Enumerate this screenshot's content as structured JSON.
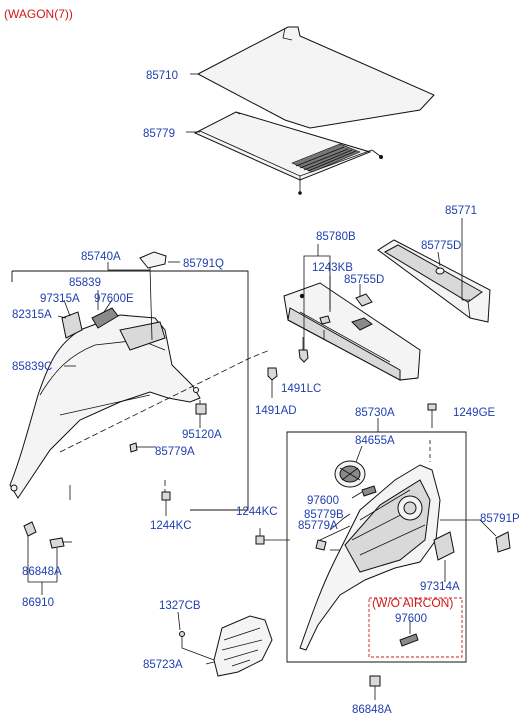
{
  "variant_label": "(WAGON(7))",
  "note_label": "(W/O AIRCON)",
  "labels": [
    {
      "id": "85710",
      "text": "85710"
    },
    {
      "id": "85779-top",
      "text": "85779"
    },
    {
      "id": "85771",
      "text": "85771"
    },
    {
      "id": "85775D",
      "text": "85775D"
    },
    {
      "id": "85780B",
      "text": "85780B"
    },
    {
      "id": "1243KB",
      "text": "1243KB"
    },
    {
      "id": "85755D",
      "text": "85755D"
    },
    {
      "id": "85740A",
      "text": "85740A"
    },
    {
      "id": "85791Q",
      "text": "85791Q"
    },
    {
      "id": "85839",
      "text": "85839"
    },
    {
      "id": "97315A",
      "text": "97315A"
    },
    {
      "id": "97600E",
      "text": "97600E"
    },
    {
      "id": "82315A",
      "text": "82315A"
    },
    {
      "id": "85839C",
      "text": "85839C"
    },
    {
      "id": "1491LC",
      "text": "1491LC"
    },
    {
      "id": "1491AD",
      "text": "1491AD"
    },
    {
      "id": "95120A",
      "text": "95120A"
    },
    {
      "id": "85779A-left",
      "text": "85779A"
    },
    {
      "id": "1244KC-left",
      "text": "1244KC"
    },
    {
      "id": "85730A",
      "text": "85730A"
    },
    {
      "id": "1249GE",
      "text": "1249GE"
    },
    {
      "id": "84655A",
      "text": "84655A"
    },
    {
      "id": "97600",
      "text": "97600"
    },
    {
      "id": "85779B",
      "text": "85779B"
    },
    {
      "id": "85779A-right",
      "text": "85779A"
    },
    {
      "id": "1244KC-right",
      "text": "1244KC"
    },
    {
      "id": "85791P",
      "text": "85791P"
    },
    {
      "id": "97314A",
      "text": "97314A"
    },
    {
      "id": "97600-aircon",
      "text": "97600"
    },
    {
      "id": "86848A-left",
      "text": "86848A"
    },
    {
      "id": "86910",
      "text": "86910"
    },
    {
      "id": "1327CB",
      "text": "1327CB"
    },
    {
      "id": "85723A",
      "text": "85723A"
    },
    {
      "id": "86848A-bottom",
      "text": "86848A"
    }
  ]
}
